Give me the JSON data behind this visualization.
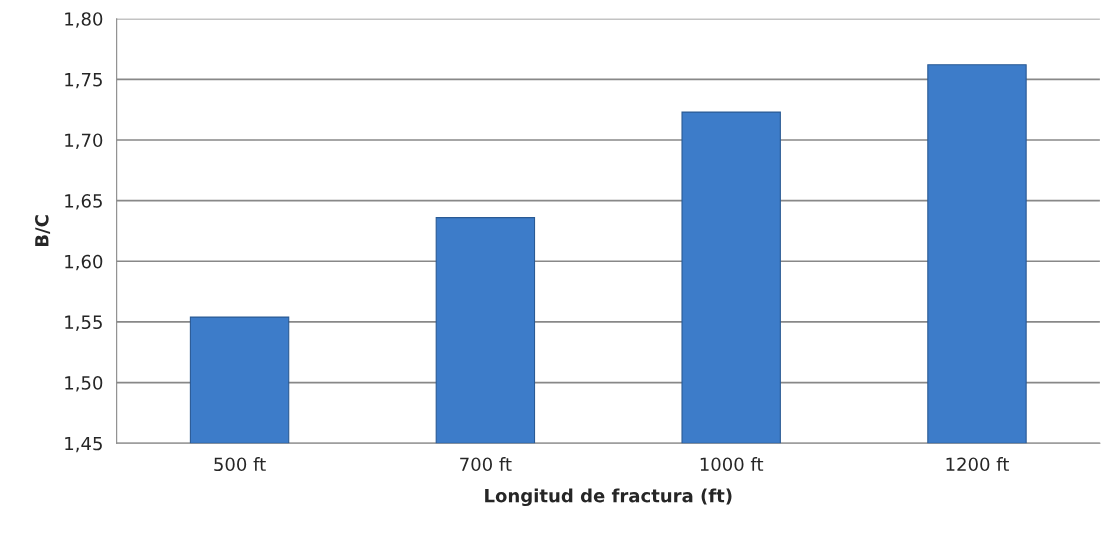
{
  "chart_data": {
    "type": "bar",
    "xlabel": "Longitud de fractura (ft)",
    "ylabel": "B/C",
    "categories": [
      "500 ft",
      "700 ft",
      "1000 ft",
      "1200 ft"
    ],
    "values": [
      1.554,
      1.636,
      1.723,
      1.762
    ],
    "color": "#3d7cc9",
    "ylim": [
      1.45,
      1.8
    ],
    "yticks": [
      {
        "value": 1.45,
        "label": "1,45"
      },
      {
        "value": 1.5,
        "label": "1,50"
      },
      {
        "value": 1.55,
        "label": "1,55"
      },
      {
        "value": 1.6,
        "label": "1,60"
      },
      {
        "value": 1.65,
        "label": "1,65"
      },
      {
        "value": 1.7,
        "label": "1,70"
      },
      {
        "value": 1.75,
        "label": "1,75"
      },
      {
        "value": 1.8,
        "label": "1,80"
      }
    ],
    "grid": "y",
    "legend": false
  }
}
